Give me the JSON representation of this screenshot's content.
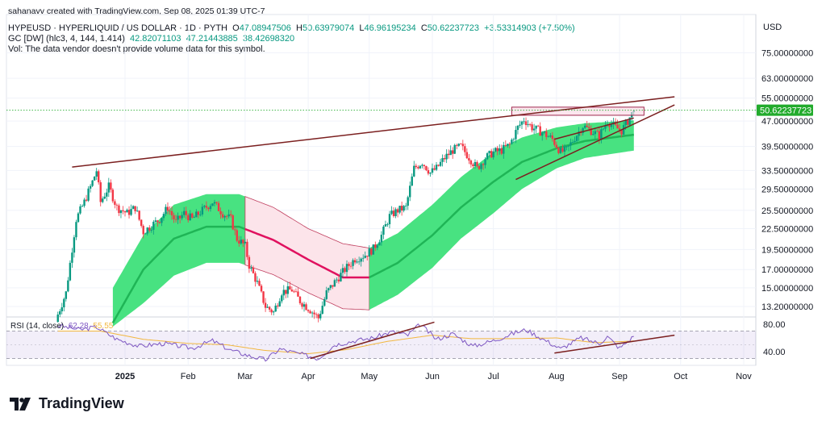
{
  "header": {
    "credit": "sahanavv created with TradingView.com, Sep 08, 2025 01:39 UTC-7",
    "symbol": "HYPEUSD · HYPERLIQUID / US DOLLAR · 1D · PYTH",
    "o_label": "O",
    "o_value": "47.08947506",
    "h_label": "H",
    "h_value": "50.63979074",
    "l_label": "L",
    "l_value": "46.96195234",
    "c_label": "C",
    "c_value": "50.62237723",
    "change": "+3.53314903 (+7.50%)",
    "gc_label": "GC [DW] (hlc3, 4, 144, 1.414)",
    "gc_values": [
      "42.82071103",
      "47.21443885",
      "38.42698320"
    ],
    "vol_note": "Vol: The data vendor doesn't provide volume data for this symbol."
  },
  "rsi_label": {
    "name": "RSI (14, close)",
    "value": "62.28",
    "ma_value": "55.55"
  },
  "currency": "USD",
  "brand": "TradingView",
  "colors": {
    "up": "#089981",
    "down": "#f23645",
    "band_green": "#3ee07a",
    "band_pink": "#fce4ea",
    "trendline": "#7b1f1f",
    "rsi": "#7e57c2",
    "rsi_ma": "#f2b73f",
    "last_price_bg": "#22ab2c"
  },
  "chart_data": {
    "type": "candlestick",
    "y_scale": "log",
    "ylim": [
      11.5,
      90
    ],
    "y_ticks": [
      "75.00000000",
      "63.00000000",
      "55.00000000",
      "47.00000000",
      "39.50000000",
      "33.50000000",
      "29.50000000",
      "25.50000000",
      "22.50000000",
      "19.50000000",
      "17.00000000",
      "15.00000000",
      "13.20000000"
    ],
    "y_tick_values": [
      75,
      63,
      55,
      47,
      39.5,
      33.5,
      29.5,
      25.5,
      22.5,
      19.5,
      17,
      15,
      13.2
    ],
    "x_ticks": [
      "2025",
      "Feb",
      "Mar",
      "Apr",
      "May",
      "Jun",
      "Jul",
      "Aug",
      "Sep",
      "Oct",
      "Nov"
    ],
    "x_tick_dates": [
      "2025-01-01",
      "2025-02-01",
      "2025-03-01",
      "2025-04-01",
      "2025-05-01",
      "2025-06-01",
      "2025-07-01",
      "2025-08-01",
      "2025-09-01",
      "2025-10-01",
      "2025-11-01"
    ],
    "last_price": "50.62237723",
    "last_price_value": 50.62,
    "price_keypoints": [
      [
        "2024-11-29",
        12.5
      ],
      [
        "2024-12-03",
        14.5
      ],
      [
        "2024-12-08",
        24
      ],
      [
        "2024-12-12",
        27
      ],
      [
        "2024-12-16",
        31
      ],
      [
        "2024-12-18",
        33.5
      ],
      [
        "2024-12-20",
        27
      ],
      [
        "2024-12-24",
        30
      ],
      [
        "2024-12-28",
        26
      ],
      [
        "2025-01-02",
        25
      ],
      [
        "2025-01-06",
        26
      ],
      [
        "2025-01-10",
        22
      ],
      [
        "2025-01-14",
        23
      ],
      [
        "2025-01-18",
        24
      ],
      [
        "2025-01-22",
        26
      ],
      [
        "2025-01-26",
        23.5
      ],
      [
        "2025-01-30",
        25
      ],
      [
        "2025-02-03",
        24
      ],
      [
        "2025-02-08",
        25.5
      ],
      [
        "2025-02-13",
        27
      ],
      [
        "2025-02-18",
        25
      ],
      [
        "2025-02-22",
        24
      ],
      [
        "2025-02-25",
        21
      ],
      [
        "2025-03-01",
        20
      ],
      [
        "2025-03-03",
        17.5
      ],
      [
        "2025-03-07",
        15.5
      ],
      [
        "2025-03-11",
        13.2
      ],
      [
        "2025-03-15",
        12.7
      ],
      [
        "2025-03-19",
        14.6
      ],
      [
        "2025-03-24",
        14.8
      ],
      [
        "2025-03-28",
        13.7
      ],
      [
        "2025-04-02",
        12.9
      ],
      [
        "2025-04-06",
        12.2
      ],
      [
        "2025-04-10",
        14.5
      ],
      [
        "2025-04-14",
        15.6
      ],
      [
        "2025-04-19",
        17
      ],
      [
        "2025-04-24",
        18.3
      ],
      [
        "2025-04-29",
        18.8
      ],
      [
        "2025-05-03",
        19.6
      ],
      [
        "2025-05-07",
        21.5
      ],
      [
        "2025-05-11",
        24.5
      ],
      [
        "2025-05-15",
        25.5
      ],
      [
        "2025-05-19",
        26
      ],
      [
        "2025-05-23",
        34
      ],
      [
        "2025-05-27",
        35.5
      ],
      [
        "2025-05-31",
        33
      ],
      [
        "2025-06-03",
        34
      ],
      [
        "2025-06-07",
        36.5
      ],
      [
        "2025-06-11",
        38.5
      ],
      [
        "2025-06-15",
        39.5
      ],
      [
        "2025-06-20",
        36
      ],
      [
        "2025-06-23",
        34
      ],
      [
        "2025-06-27",
        36.5
      ],
      [
        "2025-07-01",
        38
      ],
      [
        "2025-07-05",
        38.5
      ],
      [
        "2025-07-09",
        40
      ],
      [
        "2025-07-13",
        45
      ],
      [
        "2025-07-16",
        47.5
      ],
      [
        "2025-07-20",
        45
      ],
      [
        "2025-07-25",
        43.5
      ],
      [
        "2025-07-30",
        41.5
      ],
      [
        "2025-08-03",
        38
      ],
      [
        "2025-08-06",
        38.5
      ],
      [
        "2025-08-10",
        42
      ],
      [
        "2025-08-14",
        45.5
      ],
      [
        "2025-08-18",
        44
      ],
      [
        "2025-08-22",
        42.5
      ],
      [
        "2025-08-26",
        47
      ],
      [
        "2025-08-30",
        45
      ],
      [
        "2025-09-02",
        44
      ],
      [
        "2025-09-05",
        47
      ],
      [
        "2025-09-08",
        50.62
      ]
    ],
    "gc_band": {
      "basis": [
        [
          "2024-12-26",
          11.8
        ],
        [
          "2025-01-10",
          17
        ],
        [
          "2025-01-25",
          21
        ],
        [
          "2025-02-10",
          22.8
        ],
        [
          "2025-02-26",
          22.8
        ],
        [
          "2025-03-15",
          20.8
        ],
        [
          "2025-04-01",
          18.2
        ],
        [
          "2025-04-18",
          16.1
        ],
        [
          "2025-05-01",
          16.1
        ],
        [
          "2025-05-15",
          17.8
        ],
        [
          "2025-06-01",
          21.5
        ],
        [
          "2025-06-15",
          26
        ],
        [
          "2025-07-01",
          31
        ],
        [
          "2025-07-15",
          35.5
        ],
        [
          "2025-08-01",
          39
        ],
        [
          "2025-08-15",
          41
        ],
        [
          "2025-09-08",
          42.8
        ]
      ],
      "upper": [
        [
          "2024-12-26",
          15
        ],
        [
          "2025-01-10",
          21.5
        ],
        [
          "2025-01-25",
          26.5
        ],
        [
          "2025-02-10",
          28.5
        ],
        [
          "2025-02-26",
          28.5
        ],
        [
          "2025-03-15",
          26
        ],
        [
          "2025-04-01",
          22.5
        ],
        [
          "2025-04-18",
          20.3
        ],
        [
          "2025-05-01",
          19.7
        ],
        [
          "2025-05-15",
          21.8
        ],
        [
          "2025-06-01",
          26.5
        ],
        [
          "2025-06-15",
          32
        ],
        [
          "2025-07-01",
          38
        ],
        [
          "2025-07-15",
          42
        ],
        [
          "2025-08-01",
          45
        ],
        [
          "2025-08-15",
          46.3
        ],
        [
          "2025-09-08",
          47.2
        ]
      ],
      "lower": [
        [
          "2024-12-26",
          11.5
        ],
        [
          "2025-01-10",
          13.5
        ],
        [
          "2025-01-25",
          16.3
        ],
        [
          "2025-02-10",
          17.8
        ],
        [
          "2025-02-26",
          17.8
        ],
        [
          "2025-03-15",
          16.4
        ],
        [
          "2025-04-01",
          14.5
        ],
        [
          "2025-04-18",
          13
        ],
        [
          "2025-05-01",
          12.9
        ],
        [
          "2025-05-15",
          14.3
        ],
        [
          "2025-06-01",
          17.2
        ],
        [
          "2025-06-15",
          21
        ],
        [
          "2025-07-01",
          25
        ],
        [
          "2025-07-15",
          29.5
        ],
        [
          "2025-08-01",
          34
        ],
        [
          "2025-08-15",
          36.5
        ],
        [
          "2025-09-08",
          38.4
        ]
      ],
      "bearish_segment": [
        "2025-03-01",
        "2025-05-01"
      ]
    },
    "trendlines": [
      {
        "from": [
          "2024-12-06",
          34.3
        ],
        "to": [
          "2025-09-28",
          55.5
        ]
      },
      {
        "from": [
          "2025-07-12",
          31.5
        ],
        "to": [
          "2025-09-28",
          52.5
        ]
      },
      {
        "from": [
          "2025-07-31",
          41.5
        ],
        "to": [
          "2025-09-08",
          48
        ]
      }
    ],
    "resistance_box": {
      "from": [
        "2025-07-10",
        51.7
      ],
      "to": [
        "2025-09-13",
        48.9
      ]
    },
    "rsi": {
      "ylim": [
        30,
        85
      ],
      "y_ticks": [
        "80.00",
        "40.00"
      ],
      "y_tick_values": [
        80,
        40
      ],
      "upper_band": 70,
      "lower_band": 30,
      "keypoints": [
        [
          "2024-11-29",
          78
        ],
        [
          "2024-12-10",
          72
        ],
        [
          "2024-12-18",
          76
        ],
        [
          "2024-12-28",
          58
        ],
        [
          "2025-01-08",
          48
        ],
        [
          "2025-01-20",
          52
        ],
        [
          "2025-02-03",
          45
        ],
        [
          "2025-02-13",
          56
        ],
        [
          "2025-02-22",
          42
        ],
        [
          "2025-03-03",
          34
        ],
        [
          "2025-03-11",
          28
        ],
        [
          "2025-03-18",
          44
        ],
        [
          "2025-03-26",
          38
        ],
        [
          "2025-04-06",
          30
        ],
        [
          "2025-04-14",
          50
        ],
        [
          "2025-04-24",
          56
        ],
        [
          "2025-05-03",
          60
        ],
        [
          "2025-05-12",
          69
        ],
        [
          "2025-05-20",
          64
        ],
        [
          "2025-05-26",
          80
        ],
        [
          "2025-06-03",
          58
        ],
        [
          "2025-06-11",
          66
        ],
        [
          "2025-06-21",
          48
        ],
        [
          "2025-07-01",
          56
        ],
        [
          "2025-07-12",
          68
        ],
        [
          "2025-07-17",
          72
        ],
        [
          "2025-07-28",
          54
        ],
        [
          "2025-08-03",
          44
        ],
        [
          "2025-08-13",
          60
        ],
        [
          "2025-08-22",
          52
        ],
        [
          "2025-08-26",
          62
        ],
        [
          "2025-09-01",
          45
        ],
        [
          "2025-09-08",
          62.28
        ]
      ],
      "ma_keypoints": [
        [
          "2024-11-29",
          70
        ],
        [
          "2024-12-20",
          70
        ],
        [
          "2025-01-10",
          58
        ],
        [
          "2025-02-01",
          52
        ],
        [
          "2025-02-20",
          50
        ],
        [
          "2025-03-10",
          42
        ],
        [
          "2025-04-01",
          37
        ],
        [
          "2025-04-20",
          43
        ],
        [
          "2025-05-10",
          55
        ],
        [
          "2025-06-01",
          64
        ],
        [
          "2025-06-20",
          59
        ],
        [
          "2025-07-10",
          59
        ],
        [
          "2025-08-01",
          60
        ],
        [
          "2025-08-20",
          53
        ],
        [
          "2025-09-08",
          55.55
        ]
      ],
      "trendlines": [
        {
          "from": [
            "2025-04-02",
            30
          ],
          "to": [
            "2025-06-02",
            83
          ]
        },
        {
          "from": [
            "2025-07-31",
            38
          ],
          "to": [
            "2025-09-28",
            64
          ]
        }
      ]
    }
  }
}
